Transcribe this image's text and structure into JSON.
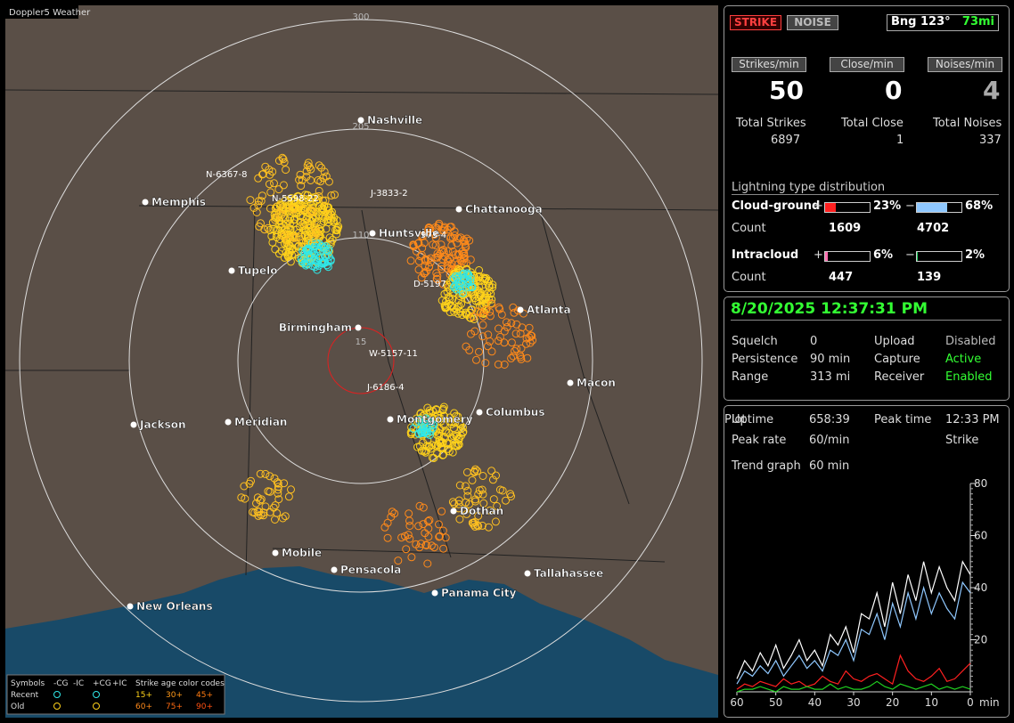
{
  "map": {
    "title": "Doppler5 Weather",
    "rings": [
      "300",
      "205",
      "110",
      "15"
    ],
    "cities": [
      "Nashville",
      "Memphis",
      "Chattanooga",
      "Huntsville",
      "Tupelo",
      "Birmingham",
      "Atlanta",
      "Macon",
      "Jackson",
      "Meridian",
      "Montgomery",
      "Columbus",
      "Dothan",
      "Mobile",
      "Pensacola",
      "Tallahassee",
      "Panama City",
      "New Orleans"
    ],
    "storms": [
      "N-6367-8",
      "N-5598-22",
      "J-3833-2",
      "973-4",
      "D-5197",
      "W-5157-11",
      "J-6186-4"
    ],
    "legend": {
      "symbols": "Symbols",
      "types": [
        "-CG",
        "-IC",
        "+CG",
        "+IC"
      ],
      "age_title": "Strike age color codes",
      "recent": "Recent",
      "old": "Old",
      "recent_ages": [
        "15+",
        "30+",
        "45+"
      ],
      "old_ages": [
        "60+",
        "75+",
        "90+"
      ]
    }
  },
  "status": {
    "strike": "STRIKE",
    "noise": "NOISE",
    "bearing": "Bng 123°",
    "distance": "73mi",
    "rate_labels": [
      "Strikes/min",
      "Close/min",
      "Noises/min"
    ],
    "rates": [
      50,
      0,
      4
    ],
    "total_labels": [
      "Total Strikes",
      "Total Close",
      "Total Noises"
    ],
    "totals": [
      6897,
      1,
      337
    ]
  },
  "distribution": {
    "title": "Lightning type distribution",
    "plus": "+",
    "minus": "−",
    "count_label": "Count",
    "rows": [
      {
        "name": "Cloud-ground",
        "plus": {
          "value": 23,
          "label": "23%"
        },
        "minus": {
          "value": 68,
          "label": "68%"
        },
        "plus_count": 1609,
        "minus_count": 4702
      },
      {
        "name": "Intracloud",
        "plus": {
          "value": 6,
          "label": "6%"
        },
        "minus": {
          "value": 2,
          "label": "2%"
        },
        "plus_count": 447,
        "minus_count": 139
      }
    ]
  },
  "settings": {
    "datetime": "8/20/2025 12:37:31 PM",
    "rows": [
      [
        "Squelch",
        "0",
        "Upload",
        "Disabled"
      ],
      [
        "Persistence",
        "90 min",
        "Capture",
        "Active"
      ],
      [
        "Range",
        "313 mi",
        "Receiver",
        "Enabled"
      ]
    ]
  },
  "stats": {
    "rows": [
      [
        "Uptime",
        "658:39",
        "Peak time",
        "12:33 PM",
        "Plot"
      ],
      [
        "Peak rate",
        "60/min",
        "Strike"
      ]
    ],
    "trend_label": "Trend graph",
    "trend_value": "60 min"
  },
  "trend": {
    "type": "line",
    "x": [
      60,
      58,
      56,
      54,
      52,
      50,
      48,
      46,
      44,
      42,
      40,
      38,
      36,
      34,
      32,
      30,
      28,
      26,
      24,
      22,
      20,
      18,
      16,
      14,
      12,
      10,
      8,
      6,
      4,
      2,
      0
    ],
    "xlim": [
      60,
      0
    ],
    "ylim": [
      0,
      80
    ],
    "xticks": [
      60,
      50,
      40,
      30,
      20,
      10,
      0
    ],
    "yticks": [
      20,
      40,
      60,
      80
    ],
    "x_unit": "min",
    "series": [
      {
        "color": "#ffffff",
        "values": [
          5,
          12,
          8,
          15,
          10,
          18,
          9,
          14,
          20,
          12,
          16,
          10,
          22,
          18,
          25,
          15,
          30,
          28,
          38,
          25,
          42,
          30,
          45,
          35,
          50,
          38,
          48,
          40,
          35,
          50,
          45
        ]
      },
      {
        "color": "#8fc8ff",
        "values": [
          3,
          8,
          6,
          10,
          7,
          12,
          6,
          10,
          14,
          9,
          12,
          8,
          16,
          14,
          20,
          12,
          24,
          22,
          30,
          20,
          34,
          25,
          38,
          28,
          40,
          30,
          38,
          32,
          28,
          42,
          38
        ]
      },
      {
        "color": "#ff2020",
        "values": [
          1,
          3,
          2,
          4,
          3,
          2,
          5,
          3,
          4,
          2,
          3,
          6,
          4,
          3,
          8,
          5,
          4,
          6,
          7,
          5,
          3,
          14,
          8,
          5,
          4,
          6,
          9,
          4,
          5,
          8,
          11
        ]
      },
      {
        "color": "#20d020",
        "values": [
          0,
          1,
          1,
          2,
          1,
          0,
          2,
          1,
          1,
          2,
          1,
          1,
          3,
          1,
          2,
          1,
          1,
          2,
          4,
          2,
          1,
          3,
          2,
          1,
          2,
          3,
          1,
          2,
          1,
          2,
          1
        ]
      }
    ]
  }
}
